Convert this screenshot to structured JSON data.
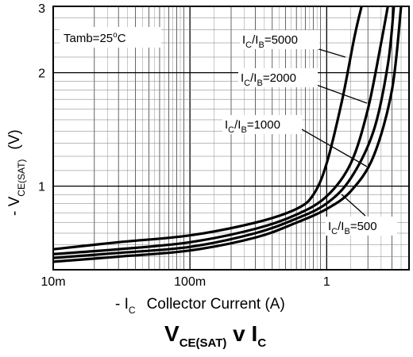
{
  "chart_data": {
    "type": "line",
    "title": "VCE(SAT) v IC",
    "title_parts": {
      "v_main": "V",
      "v_sub": "CE(SAT)",
      "mid": " v ",
      "i_main": "I",
      "i_sub": "C"
    },
    "annotation": {
      "main": "Tamb=25",
      "deg": "o",
      "unit": "C"
    },
    "xlabel": {
      "prefix": "- I",
      "sub": "C",
      "text": "Collector Current (A)"
    },
    "ylabel": {
      "prefix": "- V",
      "sub": "CE(SAT)",
      "unit": "(V)"
    },
    "x_scale": "log",
    "y_scale": "log",
    "xlim": [
      0.01,
      4
    ],
    "ylim": [
      0.6,
      3
    ],
    "grid": true,
    "x_tick_labels": [
      {
        "v": 0.01,
        "label": "10m"
      },
      {
        "v": 0.1,
        "label": "100m"
      },
      {
        "v": 1,
        "label": "1"
      }
    ],
    "y_tick_labels": [
      {
        "v": 1,
        "label": "1"
      },
      {
        "v": 2,
        "label": "2"
      },
      {
        "v": 3,
        "label": "3"
      }
    ],
    "series": [
      {
        "name": "IC/IB=5000",
        "label": {
          "i1": "I",
          "s1": "C",
          "mid": "/I",
          "s2": "B",
          "val": "=5000"
        },
        "points": [
          [
            0.01,
            0.68
          ],
          [
            0.03,
            0.71
          ],
          [
            0.1,
            0.74
          ],
          [
            0.3,
            0.8
          ],
          [
            0.6,
            0.87
          ],
          [
            0.8,
            0.95
          ],
          [
            1.0,
            1.15
          ],
          [
            1.3,
            1.7
          ],
          [
            1.6,
            2.5
          ],
          [
            1.8,
            3.0
          ]
        ]
      },
      {
        "name": "IC/IB=2000",
        "label": {
          "i1": "I",
          "s1": "C",
          "mid": "/I",
          "s2": "B",
          "val": "=2000"
        },
        "points": [
          [
            0.01,
            0.66
          ],
          [
            0.03,
            0.68
          ],
          [
            0.1,
            0.71
          ],
          [
            0.3,
            0.77
          ],
          [
            0.6,
            0.84
          ],
          [
            1.0,
            0.94
          ],
          [
            1.5,
            1.15
          ],
          [
            2.0,
            1.6
          ],
          [
            2.5,
            2.4
          ],
          [
            2.8,
            3.0
          ]
        ]
      },
      {
        "name": "IC/IB=1000",
        "label": {
          "i1": "I",
          "s1": "C",
          "mid": "/I",
          "s2": "B",
          "val": "=1000"
        },
        "points": [
          [
            0.01,
            0.645
          ],
          [
            0.03,
            0.665
          ],
          [
            0.1,
            0.69
          ],
          [
            0.3,
            0.75
          ],
          [
            0.6,
            0.82
          ],
          [
            1.0,
            0.9
          ],
          [
            1.5,
            1.05
          ],
          [
            2.2,
            1.4
          ],
          [
            2.8,
            2.1
          ],
          [
            3.1,
            3.0
          ]
        ]
      },
      {
        "name": "IC/IB=500",
        "label": {
          "i1": "I",
          "s1": "C",
          "mid": "/I",
          "s2": "B",
          "val": "=500"
        },
        "points": [
          [
            0.01,
            0.63
          ],
          [
            0.03,
            0.65
          ],
          [
            0.1,
            0.675
          ],
          [
            0.3,
            0.73
          ],
          [
            0.6,
            0.8
          ],
          [
            1.0,
            0.87
          ],
          [
            1.5,
            0.97
          ],
          [
            2.2,
            1.2
          ],
          [
            3.0,
            1.8
          ],
          [
            3.5,
            3.0
          ]
        ]
      }
    ]
  }
}
